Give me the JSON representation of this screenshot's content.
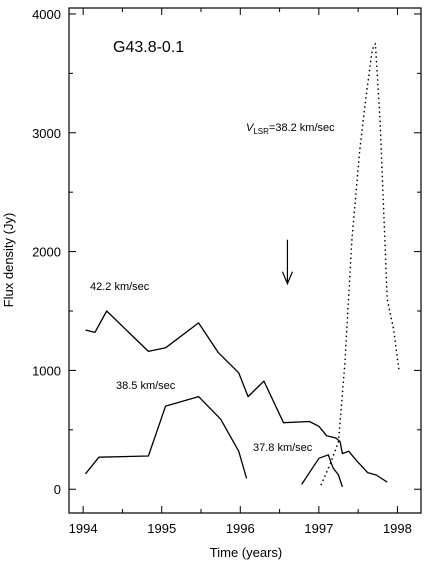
{
  "chart_data": {
    "type": "line",
    "title": "G43.8-0.1",
    "xlabel": "Time (years)",
    "ylabel": "Flux density (Jy)",
    "xlim": [
      1993.82,
      1998.3
    ],
    "ylim": [
      -200,
      4050
    ],
    "xticks": [
      1994,
      1995,
      1996,
      1997,
      1998
    ],
    "yticks": [
      0,
      1000,
      2000,
      3000,
      4000
    ],
    "grid": false,
    "annotations": [
      {
        "id": "vlsr",
        "prefix": "V",
        "sub": "LSR",
        "suffix": "=38.2 km/sec"
      },
      {
        "id": "s422",
        "text": "42.2 km/sec"
      },
      {
        "id": "s385",
        "text": "38.5 km/sec"
      },
      {
        "id": "s378",
        "text": "37.8 km/sec"
      }
    ],
    "arrow": {
      "x": 1996.6,
      "y_top": 2100,
      "y_bottom": 1730
    },
    "series": [
      {
        "id": "v42_2",
        "style": "solid",
        "x": [
          1994.03,
          1994.15,
          1994.3,
          1994.83,
          1995.05,
          1995.47,
          1995.72,
          1995.98,
          1996.1,
          1996.3,
          1996.55,
          1996.88,
          1997.0,
          1997.1,
          1997.22,
          1997.27,
          1997.3,
          1997.38,
          1997.48,
          1997.62,
          1997.73,
          1997.87
        ],
        "y": [
          1340,
          1320,
          1500,
          1160,
          1190,
          1400,
          1150,
          980,
          780,
          910,
          560,
          570,
          530,
          450,
          430,
          400,
          300,
          320,
          240,
          140,
          120,
          60
        ]
      },
      {
        "id": "v38_5",
        "style": "solid",
        "x": [
          1994.03,
          1994.2,
          1994.83,
          1995.05,
          1995.47,
          1995.75,
          1995.98,
          1996.08
        ],
        "y": [
          130,
          270,
          280,
          700,
          780,
          590,
          320,
          90
        ]
      },
      {
        "id": "v37_8",
        "style": "solid",
        "x": [
          1996.78,
          1997.0,
          1997.12,
          1997.18,
          1997.25,
          1997.3
        ],
        "y": [
          40,
          260,
          290,
          180,
          120,
          20
        ]
      },
      {
        "id": "v38_2",
        "style": "dotted",
        "x": [
          1997.03,
          1997.15,
          1997.25,
          1997.33,
          1997.42,
          1997.52,
          1997.6,
          1997.68,
          1997.72,
          1997.78,
          1997.87,
          1997.95,
          1998.02
        ],
        "y": [
          40,
          220,
          400,
          1050,
          2100,
          2850,
          3300,
          3700,
          3750,
          3100,
          1600,
          1350,
          1000
        ]
      }
    ]
  }
}
